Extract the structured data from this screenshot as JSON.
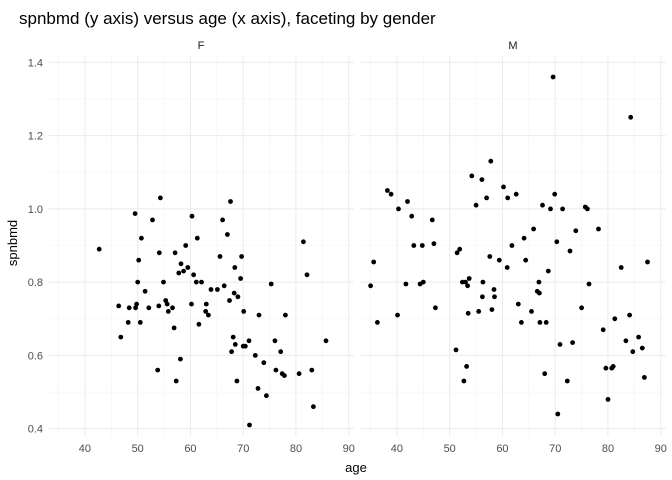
{
  "chart_data": {
    "type": "scatter",
    "title": "spnbmd (y axis) versus age (x axis), faceting by gender",
    "xlabel": "age",
    "ylabel": "spnbmd",
    "xlim": [
      33,
      91
    ],
    "ylim": [
      0.38,
      1.42
    ],
    "xticks": [
      40,
      50,
      60,
      70,
      80,
      90
    ],
    "yticks": [
      0.4,
      0.6,
      0.8,
      1.0,
      1.2,
      1.4
    ],
    "ytick_labels": [
      "0.4",
      "0.6",
      "0.8",
      "1.0",
      "1.2",
      "1.4"
    ],
    "grid": true,
    "facets": [
      {
        "label": "F",
        "points": [
          [
            42.7,
            0.89
          ],
          [
            46.4,
            0.735
          ],
          [
            46.8,
            0.65
          ],
          [
            48.2,
            0.69
          ],
          [
            48.4,
            0.73
          ],
          [
            49.5,
            0.987
          ],
          [
            49.6,
            0.73
          ],
          [
            49.8,
            0.74
          ],
          [
            50.0,
            0.8
          ],
          [
            50.2,
            0.86
          ],
          [
            50.5,
            0.69
          ],
          [
            50.7,
            0.92
          ],
          [
            51.4,
            0.775
          ],
          [
            52.1,
            0.73
          ],
          [
            52.8,
            0.97
          ],
          [
            53.8,
            0.56
          ],
          [
            54.0,
            0.735
          ],
          [
            54.1,
            0.88
          ],
          [
            54.3,
            1.03
          ],
          [
            54.9,
            0.8
          ],
          [
            55.3,
            0.75
          ],
          [
            55.6,
            0.74
          ],
          [
            55.8,
            0.72
          ],
          [
            56.6,
            0.73
          ],
          [
            56.9,
            0.675
          ],
          [
            57.1,
            0.88
          ],
          [
            57.3,
            0.53
          ],
          [
            58.1,
            0.59
          ],
          [
            57.8,
            0.825
          ],
          [
            58.2,
            0.85
          ],
          [
            58.7,
            0.83
          ],
          [
            59.1,
            0.9
          ],
          [
            59.5,
            0.84
          ],
          [
            60.2,
            0.74
          ],
          [
            60.3,
            0.98
          ],
          [
            60.6,
            0.82
          ],
          [
            61.1,
            0.8
          ],
          [
            61.3,
            0.92
          ],
          [
            61.6,
            0.685
          ],
          [
            62.1,
            0.8
          ],
          [
            62.9,
            0.72
          ],
          [
            63.0,
            0.74
          ],
          [
            63.4,
            0.71
          ],
          [
            63.9,
            0.78
          ],
          [
            65.1,
            0.78
          ],
          [
            65.6,
            0.87
          ],
          [
            66.1,
            0.97
          ],
          [
            66.4,
            0.79
          ],
          [
            67.0,
            0.93
          ],
          [
            67.4,
            0.75
          ],
          [
            67.6,
            1.02
          ],
          [
            67.8,
            0.61
          ],
          [
            68.1,
            0.65
          ],
          [
            68.3,
            0.77
          ],
          [
            68.4,
            0.84
          ],
          [
            68.5,
            0.63
          ],
          [
            68.8,
            0.53
          ],
          [
            69.0,
            0.76
          ],
          [
            69.5,
            0.81
          ],
          [
            69.7,
            0.87
          ],
          [
            70.0,
            0.625
          ],
          [
            70.1,
            0.72
          ],
          [
            70.4,
            0.625
          ],
          [
            71.1,
            0.64
          ],
          [
            71.2,
            0.41
          ],
          [
            72.3,
            0.6
          ],
          [
            72.8,
            0.51
          ],
          [
            73.0,
            0.71
          ],
          [
            73.9,
            0.58
          ],
          [
            74.4,
            0.49
          ],
          [
            75.3,
            0.795
          ],
          [
            76.0,
            0.64
          ],
          [
            76.2,
            0.56
          ],
          [
            77.1,
            0.61
          ],
          [
            77.4,
            0.55
          ],
          [
            77.8,
            0.545
          ],
          [
            78.0,
            0.71
          ],
          [
            80.6,
            0.55
          ],
          [
            81.4,
            0.91
          ],
          [
            82.1,
            0.82
          ],
          [
            83.3,
            0.46
          ],
          [
            83.0,
            0.56
          ],
          [
            85.7,
            0.64
          ]
        ]
      },
      {
        "label": "M",
        "points": [
          [
            35.0,
            0.79
          ],
          [
            35.6,
            0.855
          ],
          [
            36.3,
            0.69
          ],
          [
            38.2,
            1.05
          ],
          [
            38.9,
            1.04
          ],
          [
            40.1,
            0.71
          ],
          [
            40.3,
            1.0
          ],
          [
            41.7,
            0.795
          ],
          [
            42.0,
            1.02
          ],
          [
            42.8,
            0.98
          ],
          [
            43.2,
            0.9
          ],
          [
            44.4,
            0.795
          ],
          [
            44.8,
            0.9
          ],
          [
            45.0,
            0.8
          ],
          [
            46.7,
            0.97
          ],
          [
            47.0,
            0.905
          ],
          [
            47.3,
            0.73
          ],
          [
            51.2,
            0.615
          ],
          [
            51.4,
            0.88
          ],
          [
            51.9,
            0.89
          ],
          [
            52.4,
            0.8
          ],
          [
            52.7,
            0.53
          ],
          [
            53.0,
            0.8
          ],
          [
            53.2,
            0.57
          ],
          [
            53.4,
            0.79
          ],
          [
            53.5,
            0.715
          ],
          [
            53.7,
            0.81
          ],
          [
            54.2,
            1.09
          ],
          [
            55.0,
            1.01
          ],
          [
            55.5,
            0.72
          ],
          [
            56.1,
            1.08
          ],
          [
            56.2,
            0.76
          ],
          [
            56.3,
            0.8
          ],
          [
            57.0,
            1.03
          ],
          [
            57.6,
            0.87
          ],
          [
            57.8,
            1.13
          ],
          [
            58.0,
            0.725
          ],
          [
            58.4,
            0.78
          ],
          [
            58.5,
            0.76
          ],
          [
            59.4,
            0.86
          ],
          [
            60.2,
            1.06
          ],
          [
            60.9,
            0.84
          ],
          [
            61.0,
            1.03
          ],
          [
            61.8,
            0.9
          ],
          [
            62.6,
            1.04
          ],
          [
            63.0,
            0.74
          ],
          [
            63.6,
            0.69
          ],
          [
            64.1,
            0.92
          ],
          [
            64.4,
            0.86
          ],
          [
            65.5,
            0.72
          ],
          [
            65.9,
            0.945
          ],
          [
            66.6,
            0.775
          ],
          [
            66.9,
            0.8
          ],
          [
            67.0,
            0.77
          ],
          [
            67.1,
            0.69
          ],
          [
            67.6,
            1.01
          ],
          [
            68.0,
            0.55
          ],
          [
            68.3,
            0.69
          ],
          [
            68.7,
            0.83
          ],
          [
            69.1,
            1.0
          ],
          [
            69.6,
            1.36
          ],
          [
            69.9,
            1.04
          ],
          [
            70.3,
            0.91
          ],
          [
            70.5,
            0.44
          ],
          [
            70.9,
            0.63
          ],
          [
            71.4,
            1.0
          ],
          [
            72.3,
            0.53
          ],
          [
            72.8,
            0.885
          ],
          [
            73.3,
            0.635
          ],
          [
            73.9,
            0.94
          ],
          [
            75.0,
            0.73
          ],
          [
            75.7,
            1.005
          ],
          [
            76.4,
            0.795
          ],
          [
            76.1,
            1.0
          ],
          [
            78.2,
            0.945
          ],
          [
            79.1,
            0.67
          ],
          [
            79.6,
            0.565
          ],
          [
            80.0,
            0.48
          ],
          [
            80.7,
            0.565
          ],
          [
            81.0,
            0.57
          ],
          [
            81.3,
            0.7
          ],
          [
            82.5,
            0.84
          ],
          [
            83.4,
            0.64
          ],
          [
            84.1,
            0.71
          ],
          [
            84.3,
            1.25
          ],
          [
            84.7,
            0.61
          ],
          [
            85.8,
            0.65
          ],
          [
            86.5,
            0.62
          ],
          [
            86.9,
            0.54
          ],
          [
            87.5,
            0.855
          ]
        ]
      }
    ]
  }
}
